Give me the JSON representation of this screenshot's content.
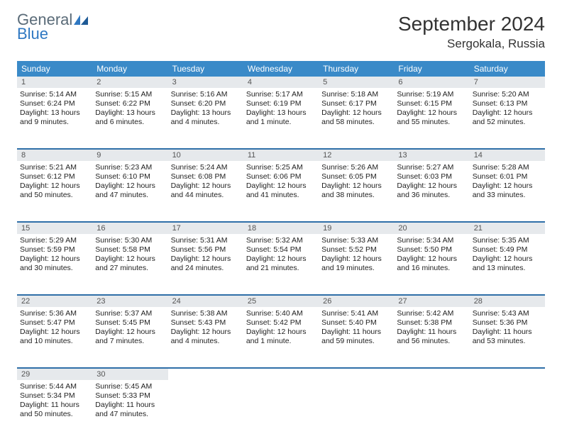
{
  "logo": {
    "word1": "General",
    "word2": "Blue"
  },
  "title": "September 2024",
  "location": "Sergokala, Russia",
  "dow": [
    "Sunday",
    "Monday",
    "Tuesday",
    "Wednesday",
    "Thursday",
    "Friday",
    "Saturday"
  ],
  "colors": {
    "header_bg": "#3a8ac8",
    "header_text": "#ffffff",
    "rule": "#2f6fa8",
    "daynum_bg": "#e6e9ec",
    "logo_gray": "#5a6b78",
    "logo_blue": "#2f78c2",
    "text": "#222222",
    "background": "#ffffff"
  },
  "weeks": [
    [
      {
        "n": "1",
        "sr": "Sunrise: 5:14 AM",
        "ss": "Sunset: 6:24 PM",
        "dl1": "Daylight: 13 hours",
        "dl2": "and 9 minutes."
      },
      {
        "n": "2",
        "sr": "Sunrise: 5:15 AM",
        "ss": "Sunset: 6:22 PM",
        "dl1": "Daylight: 13 hours",
        "dl2": "and 6 minutes."
      },
      {
        "n": "3",
        "sr": "Sunrise: 5:16 AM",
        "ss": "Sunset: 6:20 PM",
        "dl1": "Daylight: 13 hours",
        "dl2": "and 4 minutes."
      },
      {
        "n": "4",
        "sr": "Sunrise: 5:17 AM",
        "ss": "Sunset: 6:19 PM",
        "dl1": "Daylight: 13 hours",
        "dl2": "and 1 minute."
      },
      {
        "n": "5",
        "sr": "Sunrise: 5:18 AM",
        "ss": "Sunset: 6:17 PM",
        "dl1": "Daylight: 12 hours",
        "dl2": "and 58 minutes."
      },
      {
        "n": "6",
        "sr": "Sunrise: 5:19 AM",
        "ss": "Sunset: 6:15 PM",
        "dl1": "Daylight: 12 hours",
        "dl2": "and 55 minutes."
      },
      {
        "n": "7",
        "sr": "Sunrise: 5:20 AM",
        "ss": "Sunset: 6:13 PM",
        "dl1": "Daylight: 12 hours",
        "dl2": "and 52 minutes."
      }
    ],
    [
      {
        "n": "8",
        "sr": "Sunrise: 5:21 AM",
        "ss": "Sunset: 6:12 PM",
        "dl1": "Daylight: 12 hours",
        "dl2": "and 50 minutes."
      },
      {
        "n": "9",
        "sr": "Sunrise: 5:23 AM",
        "ss": "Sunset: 6:10 PM",
        "dl1": "Daylight: 12 hours",
        "dl2": "and 47 minutes."
      },
      {
        "n": "10",
        "sr": "Sunrise: 5:24 AM",
        "ss": "Sunset: 6:08 PM",
        "dl1": "Daylight: 12 hours",
        "dl2": "and 44 minutes."
      },
      {
        "n": "11",
        "sr": "Sunrise: 5:25 AM",
        "ss": "Sunset: 6:06 PM",
        "dl1": "Daylight: 12 hours",
        "dl2": "and 41 minutes."
      },
      {
        "n": "12",
        "sr": "Sunrise: 5:26 AM",
        "ss": "Sunset: 6:05 PM",
        "dl1": "Daylight: 12 hours",
        "dl2": "and 38 minutes."
      },
      {
        "n": "13",
        "sr": "Sunrise: 5:27 AM",
        "ss": "Sunset: 6:03 PM",
        "dl1": "Daylight: 12 hours",
        "dl2": "and 36 minutes."
      },
      {
        "n": "14",
        "sr": "Sunrise: 5:28 AM",
        "ss": "Sunset: 6:01 PM",
        "dl1": "Daylight: 12 hours",
        "dl2": "and 33 minutes."
      }
    ],
    [
      {
        "n": "15",
        "sr": "Sunrise: 5:29 AM",
        "ss": "Sunset: 5:59 PM",
        "dl1": "Daylight: 12 hours",
        "dl2": "and 30 minutes."
      },
      {
        "n": "16",
        "sr": "Sunrise: 5:30 AM",
        "ss": "Sunset: 5:58 PM",
        "dl1": "Daylight: 12 hours",
        "dl2": "and 27 minutes."
      },
      {
        "n": "17",
        "sr": "Sunrise: 5:31 AM",
        "ss": "Sunset: 5:56 PM",
        "dl1": "Daylight: 12 hours",
        "dl2": "and 24 minutes."
      },
      {
        "n": "18",
        "sr": "Sunrise: 5:32 AM",
        "ss": "Sunset: 5:54 PM",
        "dl1": "Daylight: 12 hours",
        "dl2": "and 21 minutes."
      },
      {
        "n": "19",
        "sr": "Sunrise: 5:33 AM",
        "ss": "Sunset: 5:52 PM",
        "dl1": "Daylight: 12 hours",
        "dl2": "and 19 minutes."
      },
      {
        "n": "20",
        "sr": "Sunrise: 5:34 AM",
        "ss": "Sunset: 5:50 PM",
        "dl1": "Daylight: 12 hours",
        "dl2": "and 16 minutes."
      },
      {
        "n": "21",
        "sr": "Sunrise: 5:35 AM",
        "ss": "Sunset: 5:49 PM",
        "dl1": "Daylight: 12 hours",
        "dl2": "and 13 minutes."
      }
    ],
    [
      {
        "n": "22",
        "sr": "Sunrise: 5:36 AM",
        "ss": "Sunset: 5:47 PM",
        "dl1": "Daylight: 12 hours",
        "dl2": "and 10 minutes."
      },
      {
        "n": "23",
        "sr": "Sunrise: 5:37 AM",
        "ss": "Sunset: 5:45 PM",
        "dl1": "Daylight: 12 hours",
        "dl2": "and 7 minutes."
      },
      {
        "n": "24",
        "sr": "Sunrise: 5:38 AM",
        "ss": "Sunset: 5:43 PM",
        "dl1": "Daylight: 12 hours",
        "dl2": "and 4 minutes."
      },
      {
        "n": "25",
        "sr": "Sunrise: 5:40 AM",
        "ss": "Sunset: 5:42 PM",
        "dl1": "Daylight: 12 hours",
        "dl2": "and 1 minute."
      },
      {
        "n": "26",
        "sr": "Sunrise: 5:41 AM",
        "ss": "Sunset: 5:40 PM",
        "dl1": "Daylight: 11 hours",
        "dl2": "and 59 minutes."
      },
      {
        "n": "27",
        "sr": "Sunrise: 5:42 AM",
        "ss": "Sunset: 5:38 PM",
        "dl1": "Daylight: 11 hours",
        "dl2": "and 56 minutes."
      },
      {
        "n": "28",
        "sr": "Sunrise: 5:43 AM",
        "ss": "Sunset: 5:36 PM",
        "dl1": "Daylight: 11 hours",
        "dl2": "and 53 minutes."
      }
    ],
    [
      {
        "n": "29",
        "sr": "Sunrise: 5:44 AM",
        "ss": "Sunset: 5:34 PM",
        "dl1": "Daylight: 11 hours",
        "dl2": "and 50 minutes."
      },
      {
        "n": "30",
        "sr": "Sunrise: 5:45 AM",
        "ss": "Sunset: 5:33 PM",
        "dl1": "Daylight: 11 hours",
        "dl2": "and 47 minutes."
      },
      null,
      null,
      null,
      null,
      null
    ]
  ]
}
